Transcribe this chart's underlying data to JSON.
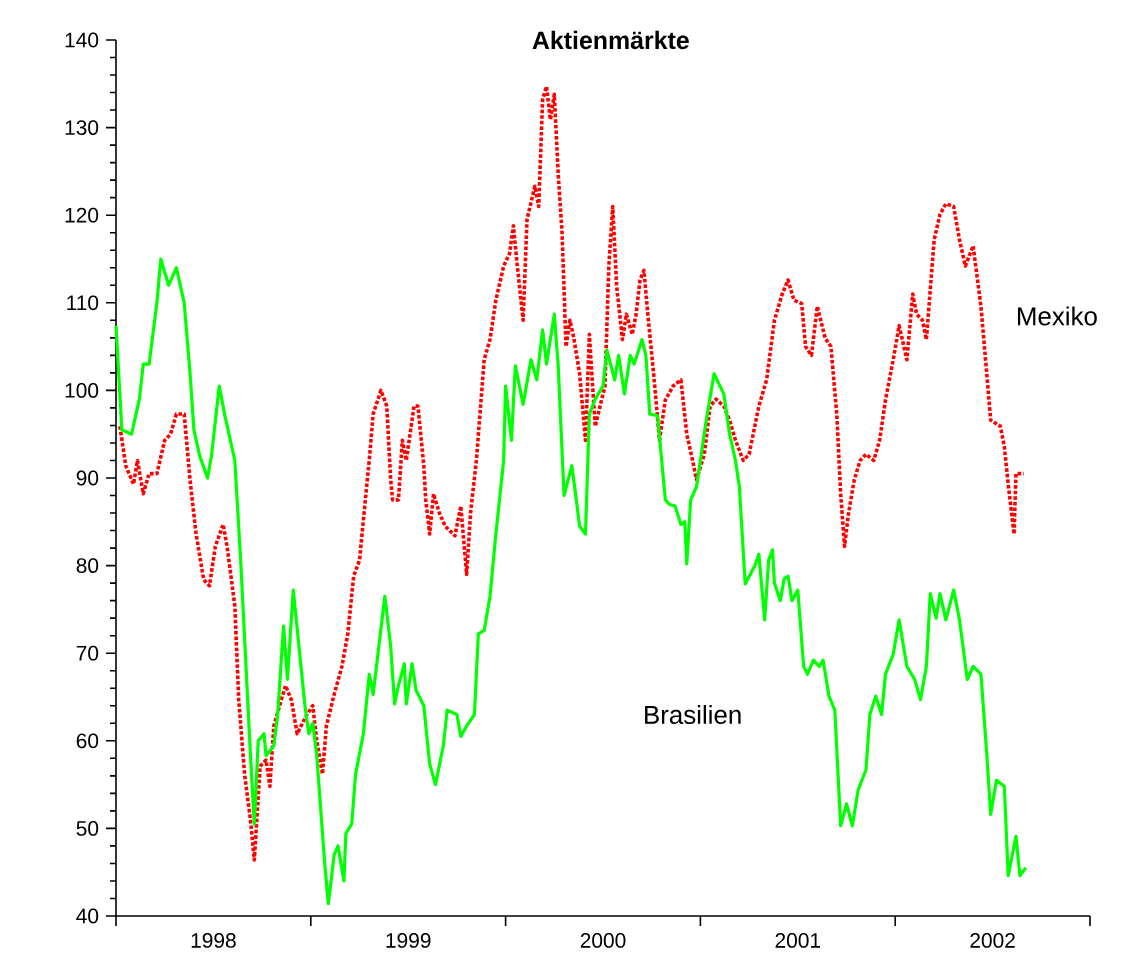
{
  "chart_data": {
    "type": "line",
    "title": "Aktienmärkte",
    "xlim": [
      1998,
      2003
    ],
    "ylim": [
      40,
      140
    ],
    "yticks": [
      40,
      50,
      60,
      70,
      80,
      90,
      100,
      110,
      120,
      130,
      140
    ],
    "xticks": [
      {
        "value": 1998,
        "label": null
      },
      {
        "value": 1998.5,
        "label": "1998"
      },
      {
        "value": 1999,
        "label": null
      },
      {
        "value": 1999.5,
        "label": "1999"
      },
      {
        "value": 2000,
        "label": null
      },
      {
        "value": 2000.5,
        "label": "2000"
      },
      {
        "value": 2001,
        "label": null
      },
      {
        "value": 2001.5,
        "label": "2001"
      },
      {
        "value": 2002,
        "label": null
      },
      {
        "value": 2002.5,
        "label": "2002"
      },
      {
        "value": 2003,
        "label": null
      }
    ],
    "legend": false,
    "series": [
      {
        "name": "Mexiko",
        "color": "#ff0000",
        "line_style": "dotted",
        "x": [
          1998.02,
          1998.05,
          1998.09,
          1998.11,
          1998.14,
          1998.17,
          1998.21,
          1998.25,
          1998.28,
          1998.31,
          1998.35,
          1998.38,
          1998.41,
          1998.45,
          1998.48,
          1998.51,
          1998.55,
          1998.57,
          1998.61,
          1998.63,
          1998.66,
          1998.69,
          1998.71,
          1998.74,
          1998.77,
          1998.79,
          1998.81,
          1998.84,
          1998.87,
          1998.9,
          1998.93,
          1998.98,
          1999.01,
          1999.03,
          1999.06,
          1999.08,
          1999.12,
          1999.16,
          1999.19,
          1999.22,
          1999.25,
          1999.29,
          1999.3,
          1999.32,
          1999.36,
          1999.39,
          1999.41,
          1999.42,
          1999.45,
          1999.47,
          1999.49,
          1999.53,
          1999.55,
          1999.58,
          1999.59,
          1999.61,
          1999.63,
          1999.66,
          1999.69,
          1999.74,
          1999.77,
          1999.8,
          1999.82,
          1999.85,
          1999.89,
          1999.92,
          1999.95,
          1999.99,
          2000.02,
          2000.04,
          2000.06,
          2000.09,
          2000.11,
          2000.15,
          2000.17,
          2000.19,
          2000.21,
          2000.23,
          2000.25,
          2000.27,
          2000.29,
          2000.31,
          2000.33,
          2000.35,
          2000.38,
          2000.41,
          2000.43,
          2000.46,
          2000.51,
          2000.53,
          2000.55,
          2000.57,
          2000.6,
          2000.62,
          2000.65,
          2000.67,
          2000.69,
          2000.71,
          2000.73,
          2000.76,
          2000.79,
          2000.82,
          2000.86,
          2000.9,
          2000.93,
          2000.96,
          2000.98,
          2001.02,
          2001.05,
          2001.08,
          2001.12,
          2001.15,
          2001.18,
          2001.22,
          2001.25,
          2001.3,
          2001.34,
          2001.38,
          2001.42,
          2001.45,
          2001.48,
          2001.52,
          2001.54,
          2001.57,
          2001.6,
          2001.64,
          2001.67,
          2001.7,
          2001.72,
          2001.74,
          2001.76,
          2001.79,
          2001.82,
          2001.85,
          2001.89,
          2001.92,
          2001.95,
          2001.99,
          2002.02,
          2002.06,
          2002.09,
          2002.11,
          2002.14,
          2002.16,
          2002.2,
          2002.23,
          2002.26,
          2002.3,
          2002.33,
          2002.36,
          2002.4,
          2002.44,
          2002.47,
          2002.49,
          2002.54,
          2002.56,
          2002.58,
          2002.61,
          2002.62,
          2002.66
        ],
        "values": [
          95.9,
          91.4,
          89.3,
          92,
          88.2,
          90.5,
          90.5,
          94.3,
          95,
          97.3,
          97.3,
          89.8,
          83.8,
          78.4,
          77.7,
          82.2,
          84.7,
          82.2,
          75.4,
          64.7,
          56.2,
          51,
          46.4,
          57.1,
          57.8,
          54.8,
          61.7,
          64,
          66.3,
          64.7,
          60.8,
          63,
          64,
          60.1,
          56.2,
          61.7,
          65.3,
          68.5,
          72.2,
          78.8,
          80.6,
          89.8,
          92,
          97.3,
          100,
          98.2,
          89.8,
          87.5,
          87.5,
          94.3,
          92,
          98.2,
          98.2,
          91.4,
          87.5,
          83.6,
          88.2,
          86,
          84.5,
          83.4,
          86.8,
          79,
          86,
          92,
          103.5,
          105.8,
          110.3,
          114.2,
          115.6,
          118.8,
          114.2,
          108,
          119.5,
          123.3,
          121,
          133.2,
          134.7,
          130.9,
          133.8,
          124.7,
          117.9,
          105,
          108,
          106,
          101.9,
          94.3,
          106.4,
          95.9,
          100.5,
          114.2,
          121,
          111.9,
          105.8,
          108.7,
          106.4,
          108.7,
          112.6,
          113.7,
          108.7,
          101.9,
          94.3,
          98.9,
          100.5,
          101.2,
          95,
          92,
          89.8,
          92.7,
          98.2,
          99,
          98.2,
          96.6,
          94.3,
          92,
          92.7,
          98.2,
          101.2,
          108,
          111,
          112.6,
          110.3,
          109.9,
          105,
          104,
          109.6,
          106,
          105,
          97.3,
          88.2,
          82.2,
          85.9,
          89.8,
          92,
          92.7,
          92,
          94.3,
          98.9,
          103.5,
          107.4,
          103.5,
          111,
          108.7,
          108,
          105.8,
          117.2,
          120.1,
          121.3,
          121,
          117.2,
          114.2,
          116.5,
          109.6,
          101.9,
          96.6,
          95.9,
          93.6,
          89.3,
          83.6,
          90.5,
          90.5
        ]
      },
      {
        "name": "Brasilien",
        "color": "#00ff00",
        "line_style": "solid",
        "x": [
          1998.0,
          1998.03,
          1998.08,
          1998.12,
          1998.14,
          1998.17,
          1998.21,
          1998.23,
          1998.27,
          1998.31,
          1998.35,
          1998.38,
          1998.4,
          1998.43,
          1998.47,
          1998.49,
          1998.53,
          1998.56,
          1998.61,
          1998.64,
          1998.69,
          1998.71,
          1998.73,
          1998.76,
          1998.77,
          1998.81,
          1998.83,
          1998.86,
          1998.88,
          1998.91,
          1998.97,
          1998.99,
          1999.01,
          1999.03,
          1999.07,
          1999.09,
          1999.12,
          1999.14,
          1999.17,
          1999.18,
          1999.21,
          1999.23,
          1999.27,
          1999.3,
          1999.32,
          1999.38,
          1999.41,
          1999.43,
          1999.45,
          1999.48,
          1999.49,
          1999.52,
          1999.54,
          1999.58,
          1999.61,
          1999.64,
          1999.68,
          1999.7,
          1999.75,
          1999.77,
          1999.8,
          1999.84,
          1999.86,
          1999.89,
          1999.92,
          1999.95,
          1999.99,
          2000.0,
          2000.03,
          2000.05,
          2000.09,
          2000.13,
          2000.16,
          2000.19,
          2000.21,
          2000.25,
          2000.27,
          2000.3,
          2000.34,
          2000.36,
          2000.38,
          2000.41,
          2000.43,
          2000.46,
          2000.5,
          2000.52,
          2000.56,
          2000.58,
          2000.61,
          2000.64,
          2000.66,
          2000.7,
          2000.72,
          2000.74,
          2000.78,
          2000.82,
          2000.84,
          2000.87,
          2000.9,
          2000.92,
          2000.93,
          2000.95,
          2000.98,
          2001.03,
          2001.07,
          2001.12,
          2001.15,
          2001.18,
          2001.2,
          2001.23,
          2001.28,
          2001.3,
          2001.33,
          2001.35,
          2001.37,
          2001.38,
          2001.41,
          2001.43,
          2001.45,
          2001.47,
          2001.5,
          2001.53,
          2001.55,
          2001.58,
          2001.61,
          2001.63,
          2001.66,
          2001.69,
          2001.72,
          2001.75,
          2001.78,
          2001.81,
          2001.85,
          2001.87,
          2001.9,
          2001.93,
          2001.95,
          2001.99,
          2002.02,
          2002.06,
          2002.1,
          2002.13,
          2002.16,
          2002.18,
          2002.21,
          2002.23,
          2002.26,
          2002.3,
          2002.33,
          2002.37,
          2002.4,
          2002.44,
          2002.47,
          2002.49,
          2002.52,
          2002.56,
          2002.58,
          2002.62,
          2002.64,
          2002.67
        ],
        "values": [
          107.4,
          95.5,
          95,
          99,
          103,
          103,
          110,
          115,
          112,
          114,
          110,
          102,
          95.5,
          92.5,
          90,
          92.5,
          100.5,
          97,
          92,
          80.6,
          58.5,
          50.5,
          60,
          60.8,
          58.3,
          59.4,
          63,
          73.1,
          67,
          77.2,
          64,
          60.8,
          62,
          58.5,
          46.4,
          41.4,
          47,
          48,
          44,
          49.4,
          50.5,
          56.2,
          60.8,
          67.6,
          65.3,
          76.5,
          70.8,
          64.2,
          66.3,
          68.8,
          64.2,
          68.8,
          65.8,
          64,
          57.4,
          55,
          59.4,
          63.5,
          63,
          60.5,
          61.7,
          63,
          72.2,
          72.6,
          76.5,
          83.6,
          92,
          100.5,
          94.3,
          102.8,
          98.4,
          103.5,
          101.2,
          106.9,
          103,
          108.7,
          102.8,
          88,
          91.4,
          88,
          84.5,
          83.6,
          97.3,
          99,
          100.5,
          104.6,
          101.2,
          104,
          99.6,
          104,
          103,
          105.8,
          104,
          97.3,
          97.1,
          87.5,
          87,
          86.8,
          84.7,
          85,
          80.2,
          87.5,
          89,
          96.6,
          101.9,
          99.6,
          95,
          92,
          89,
          77.9,
          80,
          81.3,
          73.8,
          80.6,
          81.8,
          78,
          76,
          78.5,
          78.8,
          76,
          77.2,
          68.5,
          67.6,
          69.2,
          68.5,
          69.2,
          65.1,
          63.5,
          50.3,
          52.8,
          50.3,
          54.4,
          56.7,
          63,
          65.1,
          63,
          67.6,
          69.9,
          73.8,
          68.5,
          67,
          64.7,
          68.5,
          76.8,
          74,
          76.8,
          73.8,
          77.2,
          73.8,
          67,
          68.5,
          67.6,
          58.5,
          51.6,
          55.5,
          54.8,
          44.6,
          49.1,
          44.6,
          45.5
        ]
      }
    ]
  }
}
